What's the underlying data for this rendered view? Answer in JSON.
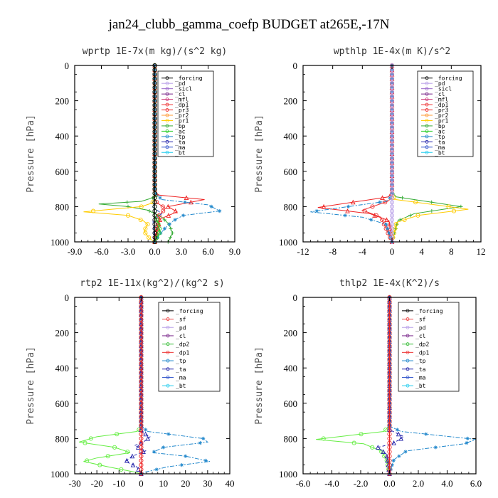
{
  "figure_title": "jan24_clubb_gamma_coefp  BUDGET at265E,-17N",
  "chart_data": [
    {
      "type": "line",
      "title": "wprtp  1E-7x(m kg)/(s^2 kg)",
      "ylabel": "Pressure [hPa]",
      "xlim": [
        -9,
        9
      ],
      "ylim": [
        1000,
        0
      ],
      "xticks": [
        "-9.0",
        "-6.0",
        "-3.0",
        "0.0",
        "3.0",
        "6.0",
        "9.0"
      ],
      "xtick_values": [
        -9,
        -6,
        -3,
        0,
        3,
        6,
        9
      ],
      "yticks": [
        "0",
        "200",
        "400",
        "600",
        "800",
        "1000"
      ],
      "ytick_values": [
        0,
        200,
        400,
        600,
        800,
        1000
      ],
      "legend": [
        "_forcing",
        "_pd",
        "_sicl",
        "_cl",
        "_mfl",
        "_dp1",
        "_pr3",
        "_pr2",
        "_pr1",
        "_bp",
        "_ac",
        "_tp",
        "_ta",
        "_ma",
        "_bt"
      ],
      "series": [
        {
          "name": "_bp",
          "color": "#33aa33",
          "dash": "",
          "marker": "cross",
          "x": [
            0,
            0,
            0.4,
            -1.5,
            -6.3,
            -3,
            -0.8,
            0.8,
            1.6,
            2,
            1.5
          ],
          "y": [
            0,
            720,
            740,
            770,
            785,
            800,
            820,
            860,
            900,
            950,
            1000
          ]
        },
        {
          "name": "_pr1",
          "color": "#ffcc00",
          "dash": "",
          "marker": "circle",
          "x": [
            0,
            0,
            -0.3,
            -1.5,
            -8,
            -3,
            -1.3,
            -0.8,
            -1.2,
            -0.6,
            0
          ],
          "y": [
            0,
            760,
            780,
            800,
            830,
            850,
            880,
            900,
            940,
            980,
            1000
          ]
        },
        {
          "name": "_pr3",
          "color": "#ee2222",
          "dash": "",
          "marker": "tri",
          "x": [
            0,
            0,
            0.5,
            5.6,
            1.5,
            2.5,
            0.6,
            0
          ],
          "y": [
            0,
            720,
            735,
            760,
            800,
            830,
            870,
            1000
          ]
        },
        {
          "name": "_dp1",
          "color": "#ee3333",
          "dash": "",
          "marker": "circle",
          "x": [
            0,
            0,
            0.3,
            1.2,
            0.5,
            0
          ],
          "y": [
            0,
            760,
            780,
            810,
            850,
            1000
          ]
        },
        {
          "name": "_tp",
          "color": "#2288cc",
          "dash": "6,2,2,2",
          "marker": "star",
          "x": [
            0,
            0,
            0.8,
            6,
            7.3,
            3.2,
            2.1,
            1.2,
            0.5,
            0
          ],
          "y": [
            0,
            720,
            760,
            790,
            825,
            850,
            880,
            920,
            960,
            1000
          ]
        },
        {
          "name": "_ma",
          "color": "#3355cc",
          "dash": "5,3",
          "marker": "",
          "x": [
            0,
            0,
            -0.3,
            0.8,
            -0.2,
            0
          ],
          "y": [
            0,
            780,
            800,
            840,
            880,
            1000
          ]
        },
        {
          "name": "_ac",
          "color": "#22cc22",
          "dash": "",
          "marker": "circle",
          "x": [
            0,
            0,
            0.3,
            0.6,
            0
          ],
          "y": [
            0,
            850,
            880,
            940,
            1000
          ]
        },
        {
          "name": "_forcing",
          "color": "#000000",
          "dash": "",
          "marker": "circle",
          "x": [
            0,
            0
          ],
          "y": [
            0,
            1000
          ]
        }
      ]
    },
    {
      "type": "line",
      "title": "wpthlp  1E-4x(m K)/s^2",
      "ylabel": "Pressure [hPa]",
      "xlim": [
        -12,
        12
      ],
      "ylim": [
        1000,
        0
      ],
      "xticks": [
        "-12",
        "-8",
        "-4",
        "0",
        "4",
        "8",
        "12"
      ],
      "xtick_values": [
        -12,
        -8,
        -4,
        0,
        4,
        8,
        12
      ],
      "yticks": [
        "0",
        "200",
        "400",
        "600",
        "800",
        "1000"
      ],
      "ytick_values": [
        0,
        200,
        400,
        600,
        800,
        1000
      ],
      "legend": [
        "_forcing",
        "_pd",
        "_sicl",
        "_cl",
        "_mfl",
        "_dp1",
        "_pr3",
        "_pr2",
        "_pr1",
        "_bp",
        "_ac",
        "_tp",
        "_ta",
        "_ma",
        "_bt"
      ],
      "series": [
        {
          "name": "_bp",
          "color": "#33aa33",
          "dash": "",
          "marker": "cross",
          "x": [
            0,
            0,
            0.6,
            9.3,
            3,
            0.8,
            0
          ],
          "y": [
            0,
            720,
            745,
            800,
            840,
            880,
            1000
          ]
        },
        {
          "name": "_pr1",
          "color": "#ffcc00",
          "dash": "",
          "marker": "circle",
          "x": [
            0,
            0,
            0.5,
            10.3,
            3.5,
            0.6,
            0
          ],
          "y": [
            0,
            740,
            760,
            815,
            850,
            890,
            1000
          ]
        },
        {
          "name": "_pr3",
          "color": "#ee2222",
          "dash": "",
          "marker": "tri",
          "x": [
            0,
            0,
            -0.5,
            -10,
            -3,
            -0.4,
            0
          ],
          "y": [
            0,
            720,
            745,
            805,
            840,
            880,
            1000
          ]
        },
        {
          "name": "_dp1",
          "color": "#ee3333",
          "dash": "",
          "marker": "circle",
          "x": [
            0,
            0,
            -0.6,
            -4,
            -1.5,
            0
          ],
          "y": [
            0,
            750,
            770,
            820,
            860,
            1000
          ]
        },
        {
          "name": "_tp",
          "color": "#2288cc",
          "dash": "6,2,2,2",
          "marker": "star",
          "x": [
            0,
            0,
            -0.8,
            -11,
            -4,
            -0.8,
            0
          ],
          "y": [
            0,
            740,
            770,
            830,
            860,
            900,
            1000
          ]
        },
        {
          "name": "_pd",
          "color": "#b9a0e8",
          "dash": "",
          "marker": "circle",
          "x": [
            0,
            0
          ],
          "y": [
            0,
            1000
          ]
        }
      ]
    },
    {
      "type": "line",
      "title": "rtp2  1E-11x(kg^2)/(kg^2 s)",
      "ylabel": "Pressure [hPa]",
      "xlim": [
        -30,
        40
      ],
      "ylim": [
        1000,
        0
      ],
      "xticks": [
        "-30",
        "-20",
        "-10",
        "0",
        "10",
        "20",
        "30",
        "40"
      ],
      "xtick_values": [
        -30,
        -20,
        -10,
        0,
        10,
        20,
        30,
        40
      ],
      "yticks": [
        "0",
        "200",
        "400",
        "600",
        "800",
        "1000"
      ],
      "ytick_values": [
        0,
        200,
        400,
        600,
        800,
        1000
      ],
      "legend": [
        "_forcing",
        "_sf",
        "_pd",
        "_cl",
        "_dp2",
        "_dp1",
        "_tp",
        "_ta",
        "_ma",
        "_bt"
      ],
      "series": [
        {
          "name": "_dp1",
          "color": "#66ee44",
          "dash": "",
          "marker": "circle",
          "x": [
            0,
            0,
            -2,
            -20,
            -28,
            -12,
            -5,
            -20,
            -26,
            -15,
            -3,
            0
          ],
          "y": [
            0,
            740,
            760,
            790,
            820,
            850,
            880,
            910,
            930,
            960,
            990,
            1000
          ]
        },
        {
          "name": "_tp",
          "color": "#2288cc",
          "dash": "6,2,2,2",
          "marker": "star",
          "x": [
            0,
            0,
            3,
            28,
            30,
            10,
            5,
            20,
            31,
            12,
            2,
            0
          ],
          "y": [
            0,
            730,
            760,
            800,
            820,
            850,
            880,
            900,
            930,
            960,
            990,
            1000
          ]
        },
        {
          "name": "_ta",
          "color": "#2222aa",
          "dash": "4,3",
          "marker": "tri",
          "x": [
            0,
            0,
            4,
            1,
            -3,
            2,
            -4,
            -7,
            -2,
            0
          ],
          "y": [
            0,
            760,
            790,
            820,
            840,
            870,
            900,
            930,
            960,
            1000
          ]
        },
        {
          "name": "_forcing",
          "color": "#ee2222",
          "dash": "",
          "marker": "circle",
          "x": [
            0,
            0
          ],
          "y": [
            0,
            1000
          ]
        }
      ]
    },
    {
      "type": "line",
      "title": "thlp2  1E-4x(K^2)/s",
      "ylabel": "Pressure [hPa]",
      "xlim": [
        -6,
        6
      ],
      "ylim": [
        1000,
        0
      ],
      "xticks": [
        "-6.0",
        "-4.0",
        "-2.0",
        "0.0",
        "2.0",
        "4.0",
        "6.0"
      ],
      "xtick_values": [
        -6,
        -4,
        -2,
        0,
        2,
        4,
        6
      ],
      "yticks": [
        "0",
        "200",
        "400",
        "600",
        "800",
        "1000"
      ],
      "ytick_values": [
        0,
        200,
        400,
        600,
        800,
        1000
      ],
      "legend": [
        "_forcing",
        "_sf",
        "_pd",
        "_cl",
        "_dp2",
        "_dp1",
        "_tp",
        "_ta",
        "_ma",
        "_bt"
      ],
      "series": [
        {
          "name": "_dp1",
          "color": "#66ee44",
          "dash": "",
          "marker": "circle",
          "x": [
            0,
            0,
            -0.4,
            -2.5,
            -5.1,
            -1.8,
            -0.6,
            -0.2,
            0
          ],
          "y": [
            0,
            730,
            760,
            780,
            805,
            830,
            870,
            920,
            1000
          ]
        },
        {
          "name": "_tp",
          "color": "#2288cc",
          "dash": "6,2,2,2",
          "marker": "star",
          "x": [
            0,
            0,
            0.8,
            6,
            5.2,
            1.2,
            0.3,
            0
          ],
          "y": [
            0,
            730,
            760,
            805,
            830,
            870,
            920,
            1000
          ]
        },
        {
          "name": "_ta",
          "color": "#2222aa",
          "dash": "4,3",
          "marker": "tri",
          "x": [
            0,
            0,
            1,
            0.2,
            -0.8,
            -0.2,
            0
          ],
          "y": [
            0,
            750,
            790,
            830,
            850,
            890,
            1000
          ]
        },
        {
          "name": "_forcing",
          "color": "#ee2222",
          "dash": "",
          "marker": "circle",
          "x": [
            0,
            0
          ],
          "y": [
            0,
            1000
          ]
        }
      ]
    }
  ],
  "legend_colors": {
    "_forcing": "#000000",
    "_pd": "#b9a0e8",
    "_sicl": "#9966cc",
    "_cl": "#772288",
    "_mfl": "#cc3377",
    "_dp1": "#ee3333",
    "_pr3": "#ee2222",
    "_pr2": "#ff9933",
    "_pr1": "#ffcc00",
    "_bp": "#33aa33",
    "_ac": "#22cc22",
    "_tp": "#2288cc",
    "_ta": "#2222aa",
    "_ma": "#3355cc",
    "_bt": "#22ccee",
    "_sf": "#ee4444",
    "_dp2": "#33bb33"
  }
}
